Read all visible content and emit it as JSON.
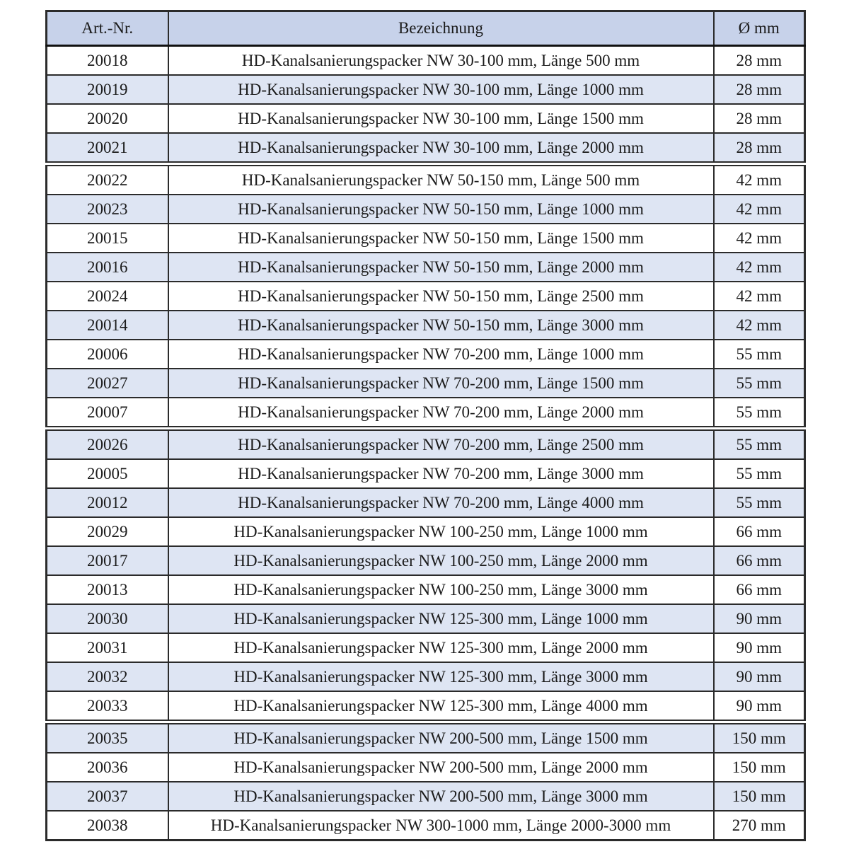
{
  "table": {
    "headers": {
      "art": "Art.-Nr.",
      "name": "Bezeichnung",
      "dia": "Ø mm"
    },
    "rows": [
      {
        "art": "20018",
        "name": "HD-Kanalsanierungspacker NW 30-100 mm, Länge 500 mm",
        "dia": "28 mm"
      },
      {
        "art": "20019",
        "name": "HD-Kanalsanierungspacker NW 30-100 mm, Länge 1000 mm",
        "dia": "28 mm"
      },
      {
        "art": "20020",
        "name": "HD-Kanalsanierungspacker NW 30-100 mm, Länge 1500 mm",
        "dia": "28 mm"
      },
      {
        "art": "20021",
        "name": "HD-Kanalsanierungspacker NW 30-100 mm, Länge 2000 mm",
        "dia": "28 mm"
      },
      {
        "art": "20022",
        "name": "HD-Kanalsanierungspacker NW 50-150 mm, Länge 500 mm",
        "dia": "42 mm"
      },
      {
        "art": "20023",
        "name": "HD-Kanalsanierungspacker NW 50-150 mm, Länge 1000 mm",
        "dia": "42 mm"
      },
      {
        "art": "20015",
        "name": "HD-Kanalsanierungspacker NW 50-150 mm, Länge 1500 mm",
        "dia": "42 mm"
      },
      {
        "art": "20016",
        "name": "HD-Kanalsanierungspacker NW 50-150 mm, Länge 2000 mm",
        "dia": "42 mm"
      },
      {
        "art": "20024",
        "name": "HD-Kanalsanierungspacker NW 50-150 mm, Länge 2500 mm",
        "dia": "42 mm"
      },
      {
        "art": "20014",
        "name": "HD-Kanalsanierungspacker NW 50-150 mm, Länge 3000 mm",
        "dia": "42 mm"
      },
      {
        "art": "20006",
        "name": "HD-Kanalsanierungspacker NW 70-200 mm, Länge 1000 mm",
        "dia": "55 mm"
      },
      {
        "art": "20027",
        "name": "HD-Kanalsanierungspacker NW 70-200 mm, Länge 1500 mm",
        "dia": "55 mm"
      },
      {
        "art": "20007",
        "name": "HD-Kanalsanierungspacker NW 70-200 mm, Länge 2000 mm",
        "dia": "55 mm"
      },
      {
        "art": "20026",
        "name": "HD-Kanalsanierungspacker NW 70-200 mm, Länge 2500 mm",
        "dia": "55 mm"
      },
      {
        "art": "20005",
        "name": "HD-Kanalsanierungspacker NW 70-200 mm, Länge 3000 mm",
        "dia": "55 mm"
      },
      {
        "art": "20012",
        "name": "HD-Kanalsanierungspacker NW 70-200 mm, Länge 4000 mm",
        "dia": "55 mm"
      },
      {
        "art": "20029",
        "name": "HD-Kanalsanierungspacker NW 100-250 mm, Länge 1000 mm",
        "dia": "66 mm"
      },
      {
        "art": "20017",
        "name": "HD-Kanalsanierungspacker NW 100-250 mm, Länge 2000 mm",
        "dia": "66 mm"
      },
      {
        "art": "20013",
        "name": "HD-Kanalsanierungspacker NW 100-250 mm, Länge 3000 mm",
        "dia": "66 mm"
      },
      {
        "art": "20030",
        "name": "HD-Kanalsanierungspacker NW 125-300 mm, Länge 1000 mm",
        "dia": "90 mm"
      },
      {
        "art": "20031",
        "name": "HD-Kanalsanierungspacker NW 125-300 mm, Länge 2000 mm",
        "dia": "90 mm"
      },
      {
        "art": "20032",
        "name": "HD-Kanalsanierungspacker NW 125-300 mm, Länge 3000 mm",
        "dia": "90 mm"
      },
      {
        "art": "20033",
        "name": "HD-Kanalsanierungspacker NW 125-300 mm, Länge 4000 mm",
        "dia": "90 mm"
      },
      {
        "art": "20035",
        "name": "HD-Kanalsanierungspacker NW 200-500 mm, Länge 1500 mm",
        "dia": "150 mm"
      },
      {
        "art": "20036",
        "name": "HD-Kanalsanierungspacker NW 200-500 mm, Länge 2000 mm",
        "dia": "150 mm"
      },
      {
        "art": "20037",
        "name": "HD-Kanalsanierungspacker NW 200-500 mm, Länge 3000 mm",
        "dia": "150 mm"
      },
      {
        "art": "20038",
        "name": "HD-Kanalsanierungspacker NW 300-1000 mm, Länge 2000-3000 mm",
        "dia": "270 mm"
      }
    ],
    "break_before": [
      "20022",
      "20026",
      "20035"
    ],
    "colors": {
      "header_bg": "#c7d2ea",
      "row_alt_bg": "#dee5f3",
      "border": "#2b2b2b",
      "text": "#1b1b1b"
    }
  }
}
